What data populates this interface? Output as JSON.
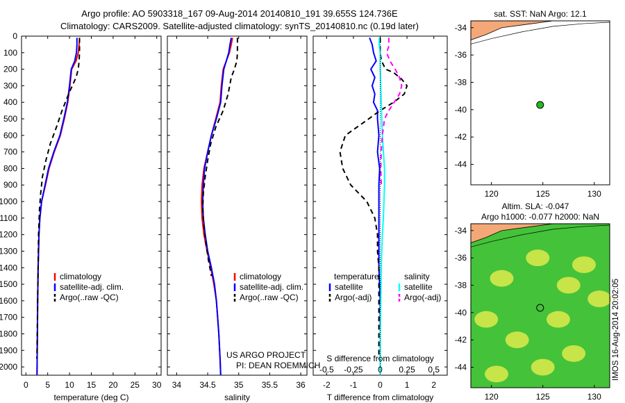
{
  "header": {
    "line1": "Argo profile: AO 5903318_167 09-Aug-2014 20140810_191 39.655S 124.736E",
    "line2": "Climatology: CARS2009. Satellite-adjusted climatology: synTS_20140810.nc (0.19d later)"
  },
  "credits": {
    "project": "US ARGO PROJECT",
    "pi": "PI: DEAN ROEMMICH",
    "imos": "IMOS 16-Aug-2014 20:02:05"
  },
  "colors": {
    "climatology": "#ff0000",
    "satellite": "#0000ff",
    "argo": "#000000",
    "salinity_satellite": "#00ffff",
    "salinity_argo": "#ff00ff",
    "land": "#f4a878",
    "sla_green": "#44c23a",
    "sla_yellow": "#d6e84a",
    "float_marker": "#22bb22"
  },
  "chart_data": [
    {
      "type": "line",
      "id": "temperature",
      "xlabel": "temperature (deg C)",
      "xlim": [
        -1,
        31
      ],
      "ylim": [
        0,
        2050
      ],
      "y_reversed": true,
      "xticks": [
        0,
        5,
        10,
        15,
        20,
        25,
        30
      ],
      "yticks": [
        0,
        100,
        200,
        300,
        400,
        500,
        600,
        700,
        800,
        900,
        1000,
        1100,
        1200,
        1300,
        1400,
        1500,
        1600,
        1700,
        1800,
        1900,
        2000
      ],
      "legend": [
        "climatology",
        "satellite-adj. clim.",
        "Argo(..raw -QC)"
      ],
      "series": [
        {
          "name": "climatology",
          "style": "solid",
          "color": "#ff0000",
          "x": [
            12.3,
            12.2,
            12.0,
            11.5,
            10.5,
            10.1,
            9.6,
            8.8,
            7.9,
            6.5,
            5.3,
            4.5,
            3.6,
            3.2,
            3.0,
            2.9,
            2.8,
            2.75,
            2.7,
            2.65,
            2.6,
            2.55
          ],
          "y": [
            10,
            50,
            100,
            150,
            200,
            300,
            400,
            500,
            600,
            700,
            800,
            900,
            1000,
            1100,
            1200,
            1300,
            1400,
            1500,
            1600,
            1800,
            1900,
            2050
          ]
        },
        {
          "name": "satellite-adj. clim.",
          "style": "solid",
          "color": "#0000ff",
          "x": [
            11.7,
            11.7,
            11.6,
            11.2,
            10.4,
            10.0,
            9.5,
            8.7,
            7.8,
            6.4,
            5.2,
            4.4,
            3.6,
            3.2,
            3.0,
            2.9,
            2.8,
            2.75,
            2.7,
            2.65,
            2.6,
            2.55
          ],
          "y": [
            10,
            50,
            100,
            150,
            200,
            300,
            400,
            500,
            600,
            700,
            800,
            900,
            1000,
            1100,
            1200,
            1300,
            1400,
            1500,
            1600,
            1800,
            1900,
            2050
          ]
        },
        {
          "name": "Argo(..raw -QC)",
          "style": "dashed",
          "color": "#000000",
          "x": [
            12.3,
            12.3,
            12.2,
            12.0,
            11.5,
            9.8,
            8.3,
            7.0,
            5.6,
            4.6,
            3.8,
            3.4,
            3.1,
            2.9,
            2.8,
            2.7,
            2.6,
            2.55,
            2.5
          ],
          "y": [
            10,
            100,
            150,
            200,
            250,
            350,
            450,
            550,
            650,
            750,
            850,
            950,
            1050,
            1200,
            1400,
            1600,
            1800,
            1900,
            1950
          ]
        }
      ]
    },
    {
      "type": "line",
      "id": "salinity",
      "xlabel": "salinity",
      "xlim": [
        33.85,
        36.1
      ],
      "ylim": [
        0,
        2050
      ],
      "y_reversed": true,
      "xticks": [
        34,
        34.5,
        35,
        35.5,
        36
      ],
      "xticklabels": [
        "34",
        "34.5",
        "35",
        "35.5",
        "36"
      ],
      "legend": [
        "climatology",
        "satellite-adj. clim.",
        "Argo(..raw -QC)"
      ],
      "series": [
        {
          "name": "climatology",
          "style": "solid",
          "color": "#ff0000",
          "x": [
            34.9,
            34.88,
            34.85,
            34.8,
            34.75,
            34.72,
            34.7,
            34.63,
            34.56,
            34.5,
            34.44,
            34.41,
            34.4,
            34.41,
            34.44,
            34.49,
            34.55,
            34.6,
            34.64,
            34.66,
            34.68,
            34.7,
            34.71
          ],
          "y": [
            10,
            50,
            100,
            150,
            200,
            300,
            400,
            500,
            600,
            700,
            800,
            900,
            1000,
            1100,
            1200,
            1300,
            1400,
            1500,
            1600,
            1700,
            1800,
            1950,
            2050
          ]
        },
        {
          "name": "satellite-adj. clim.",
          "style": "solid",
          "color": "#0000ff",
          "x": [
            34.88,
            34.86,
            34.84,
            34.8,
            34.76,
            34.73,
            34.71,
            34.64,
            34.56,
            34.5,
            34.45,
            34.43,
            34.42,
            34.43,
            34.46,
            34.5,
            34.56,
            34.61,
            34.64,
            34.66,
            34.68,
            34.7,
            34.71
          ],
          "y": [
            10,
            50,
            100,
            150,
            200,
            300,
            400,
            500,
            600,
            700,
            800,
            900,
            1000,
            1100,
            1200,
            1300,
            1400,
            1500,
            1600,
            1700,
            1800,
            1950,
            2050
          ]
        },
        {
          "name": "Argo(..raw -QC)",
          "style": "dashed",
          "color": "#000000",
          "x": [
            34.98,
            34.98,
            34.97,
            34.93,
            34.88,
            34.83,
            34.75,
            34.63,
            34.55,
            34.5,
            34.46,
            34.43,
            34.42,
            34.44,
            34.47,
            34.51,
            34.56
          ],
          "y": [
            10,
            100,
            150,
            200,
            250,
            350,
            450,
            550,
            650,
            750,
            850,
            950,
            1050,
            1150,
            1250,
            1350,
            1450
          ]
        }
      ]
    },
    {
      "type": "line",
      "id": "difference",
      "xlabel": "T difference from climatology",
      "xlabel_top": "S difference from climatology",
      "xlim": [
        -2.5,
        2.5
      ],
      "ylim": [
        0,
        2050
      ],
      "y_reversed": true,
      "xticks": [
        -2,
        -1,
        0,
        1,
        2
      ],
      "xticks_S": [
        -0.5,
        -0.25,
        0,
        0.25,
        0.5
      ],
      "legend_left_title": "temperature",
      "legend_right_title": "salinity",
      "legend": [
        "satellite",
        "Argo(-adj)",
        "satellite",
        "Argo(-adj)"
      ],
      "series": [
        {
          "name": "temperature satellite",
          "style": "solid",
          "color": "#0000ff",
          "x": [
            -0.4,
            -0.3,
            -0.25,
            -0.15,
            -0.35,
            -0.2,
            -0.3,
            -0.2,
            -0.25,
            -0.1,
            -0.1,
            -0.05,
            -0.1,
            -0.02,
            -0.05,
            -0.05,
            -0.05,
            -0.05,
            -0.05,
            0.0,
            0.0,
            0.0
          ],
          "y": [
            10,
            50,
            100,
            150,
            200,
            250,
            300,
            350,
            400,
            450,
            500,
            600,
            700,
            800,
            900,
            1000,
            1100,
            1200,
            1400,
            1600,
            1800,
            2050
          ]
        },
        {
          "name": "temperature Argo(-adj)",
          "style": "dashed",
          "color": "#000000",
          "x": [
            0.0,
            0.0,
            0.05,
            0.2,
            0.5,
            0.8,
            1.0,
            0.9,
            0.5,
            0.0,
            -0.6,
            -1.3,
            -1.5,
            -1.4,
            -1.1,
            -0.5,
            -0.2,
            -0.1,
            -0.1,
            -0.05,
            -0.05,
            -0.05,
            -0.05
          ],
          "y": [
            10,
            100,
            150,
            200,
            220,
            260,
            300,
            350,
            400,
            450,
            520,
            600,
            700,
            800,
            900,
            1000,
            1100,
            1200,
            1300,
            1400,
            1600,
            1800,
            1950
          ]
        },
        {
          "name": "salinity satellite",
          "style": "solid",
          "color": "#00ffff",
          "x": [
            -0.01,
            -0.01,
            0.0,
            0.0,
            0.005,
            0.01,
            0.015,
            0.02,
            0.03,
            0.04,
            0.04,
            0.035,
            0.03,
            0.02,
            0.01,
            0.005,
            0.0,
            0.0,
            0.0
          ],
          "y": [
            10,
            50,
            100,
            200,
            300,
            400,
            500,
            600,
            700,
            800,
            900,
            1000,
            1100,
            1200,
            1400,
            1600,
            1800,
            1950,
            2050
          ]
        },
        {
          "name": "salinity Argo(-adj)",
          "style": "dashed",
          "color": "#ff00ff",
          "x": [
            0.08,
            0.08,
            0.06,
            0.09,
            0.14,
            0.18,
            0.2,
            0.18,
            0.13,
            0.08,
            0.04,
            0.02,
            0.01,
            0.005,
            0.01
          ],
          "y": [
            10,
            60,
            100,
            150,
            200,
            250,
            300,
            350,
            400,
            450,
            500,
            600,
            700,
            800,
            900
          ]
        }
      ]
    },
    {
      "type": "scatter",
      "id": "sst_map",
      "title": "sat. SST: NaN Argo: 12.1",
      "xlim": [
        118,
        131.5
      ],
      "ylim": [
        -45.5,
        -33.5
      ],
      "xticks": [
        120,
        125,
        130
      ],
      "yticks": [
        -34,
        -36,
        -38,
        -40,
        -42,
        -44
      ],
      "argo_position": {
        "lon": 124.736,
        "lat": -39.655
      }
    },
    {
      "type": "heatmap",
      "id": "sla_map",
      "title_line1": "Altim. SLA: -0.047",
      "title_line2": "Argo h1000: -0.077 h2000: NaN",
      "xlim": [
        118,
        131.5
      ],
      "ylim": [
        -45.5,
        -33.5
      ],
      "xticks": [
        120,
        125,
        130
      ],
      "yticks": [
        -34,
        -36,
        -38,
        -40,
        -42,
        -44
      ],
      "argo_position": {
        "lon": 124.736,
        "lat": -39.655
      },
      "yellow_patches": [
        {
          "lon": 121.0,
          "lat": -37.5
        },
        {
          "lon": 124.5,
          "lat": -36.0
        },
        {
          "lon": 129.0,
          "lat": -36.5
        },
        {
          "lon": 130.5,
          "lat": -39.0
        },
        {
          "lon": 119.5,
          "lat": -40.5
        },
        {
          "lon": 122.5,
          "lat": -42.0
        },
        {
          "lon": 126.5,
          "lat": -40.5
        },
        {
          "lon": 128.0,
          "lat": -43.0
        },
        {
          "lon": 120.5,
          "lat": -44.5
        },
        {
          "lon": 125.0,
          "lat": -44.0
        },
        {
          "lon": 127.5,
          "lat": -38.0
        }
      ]
    }
  ]
}
